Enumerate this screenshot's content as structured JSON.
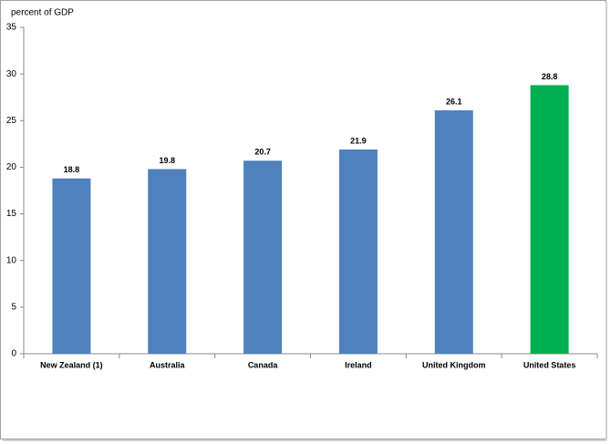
{
  "chart_data": {
    "type": "bar",
    "y_label": "percent of GDP",
    "categories": [
      "New Zealand (1)",
      "Australia",
      "Canada",
      "Ireland",
      "United Kingdom",
      "United States"
    ],
    "values": [
      18.8,
      19.8,
      20.7,
      21.9,
      26.1,
      28.8
    ],
    "colors": [
      "#4f81bd",
      "#4f81bd",
      "#4f81bd",
      "#4f81bd",
      "#4f81bd",
      "#00b050"
    ],
    "ylim": [
      0,
      35
    ],
    "yticks": [
      0,
      5,
      10,
      15,
      20,
      25,
      30,
      35
    ],
    "grid": false
  }
}
